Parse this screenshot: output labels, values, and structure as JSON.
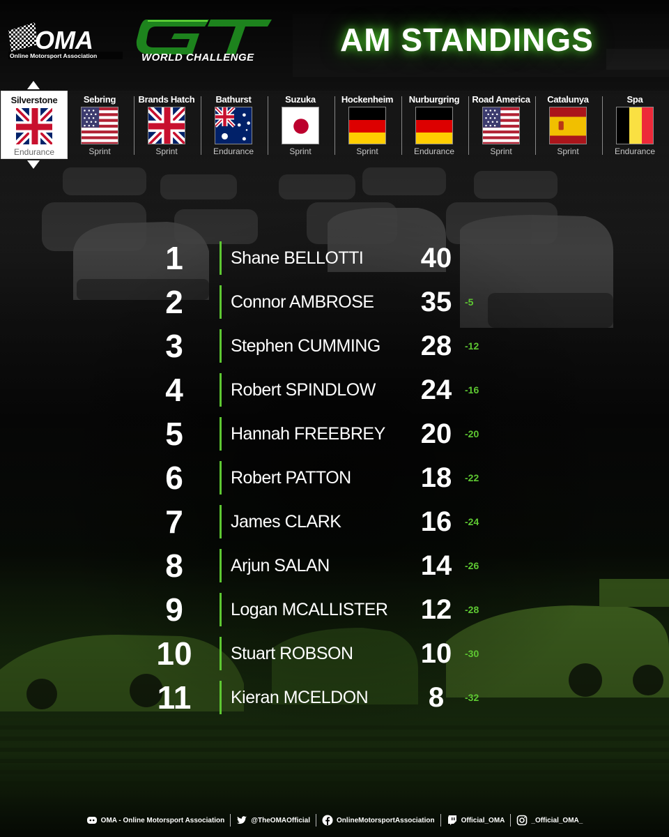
{
  "header": {
    "oma_logo_text": "OMA",
    "oma_tagline": "Online Motorsport Association",
    "gt_logo_text": "GT",
    "series_name": "WORLD CHALLENGE",
    "title": "AM STANDINGS"
  },
  "colors": {
    "accent_green": "#5ec832",
    "background": "#0b0b0b",
    "gap_text": "#5ec832"
  },
  "calendar": [
    {
      "name": "Silverstone",
      "type": "Endurance",
      "flag": "uk-flag-icon",
      "active": true
    },
    {
      "name": "Sebring",
      "type": "Sprint",
      "flag": "usa-flag-icon",
      "active": false
    },
    {
      "name": "Brands Hatch",
      "type": "Sprint",
      "flag": "uk-flag-icon",
      "active": false
    },
    {
      "name": "Bathurst",
      "type": "Endurance",
      "flag": "australia-flag-icon",
      "active": false
    },
    {
      "name": "Suzuka",
      "type": "Sprint",
      "flag": "japan-flag-icon",
      "active": false
    },
    {
      "name": "Hockenheim",
      "type": "Sprint",
      "flag": "germany-flag-icon",
      "active": false
    },
    {
      "name": "Nurburgring",
      "type": "Endurance",
      "flag": "germany-flag-icon",
      "active": false
    },
    {
      "name": "Road America",
      "type": "Sprint",
      "flag": "usa-flag-icon",
      "active": false
    },
    {
      "name": "Catalunya",
      "type": "Sprint",
      "flag": "spain-flag-icon",
      "active": false
    },
    {
      "name": "Spa",
      "type": "Endurance",
      "flag": "belgium-flag-icon",
      "active": false
    }
  ],
  "standings": [
    {
      "pos": "1",
      "driver": "Shane BELLOTTI",
      "points": "40",
      "gap": ""
    },
    {
      "pos": "2",
      "driver": "Connor AMBROSE",
      "points": "35",
      "gap": "-5"
    },
    {
      "pos": "3",
      "driver": "Stephen CUMMING",
      "points": "28",
      "gap": "-12"
    },
    {
      "pos": "4",
      "driver": "Robert SPINDLOW",
      "points": "24",
      "gap": "-16"
    },
    {
      "pos": "5",
      "driver": "Hannah FREEBREY",
      "points": "20",
      "gap": "-20"
    },
    {
      "pos": "6",
      "driver": "Robert PATTON",
      "points": "18",
      "gap": "-22"
    },
    {
      "pos": "7",
      "driver": "James CLARK",
      "points": "16",
      "gap": "-24"
    },
    {
      "pos": "8",
      "driver": "Arjun SALAN",
      "points": "14",
      "gap": "-26"
    },
    {
      "pos": "9",
      "driver": "Logan MCALLISTER",
      "points": "12",
      "gap": "-28"
    },
    {
      "pos": "10",
      "driver": "Stuart ROBSON",
      "points": "10",
      "gap": "-30"
    },
    {
      "pos": "11",
      "driver": "Kieran MCELDON",
      "points": "8",
      "gap": "-32"
    }
  ],
  "footer": [
    {
      "icon": "discord-icon",
      "label": "OMA - Online Motorsport Association"
    },
    {
      "icon": "twitter-icon",
      "label": "@TheOMAOfficial"
    },
    {
      "icon": "facebook-icon",
      "label": "OnlineMotorsportAssociation"
    },
    {
      "icon": "twitch-icon",
      "label": "Official_OMA"
    },
    {
      "icon": "instagram-icon",
      "label": "_Official_OMA_"
    }
  ]
}
